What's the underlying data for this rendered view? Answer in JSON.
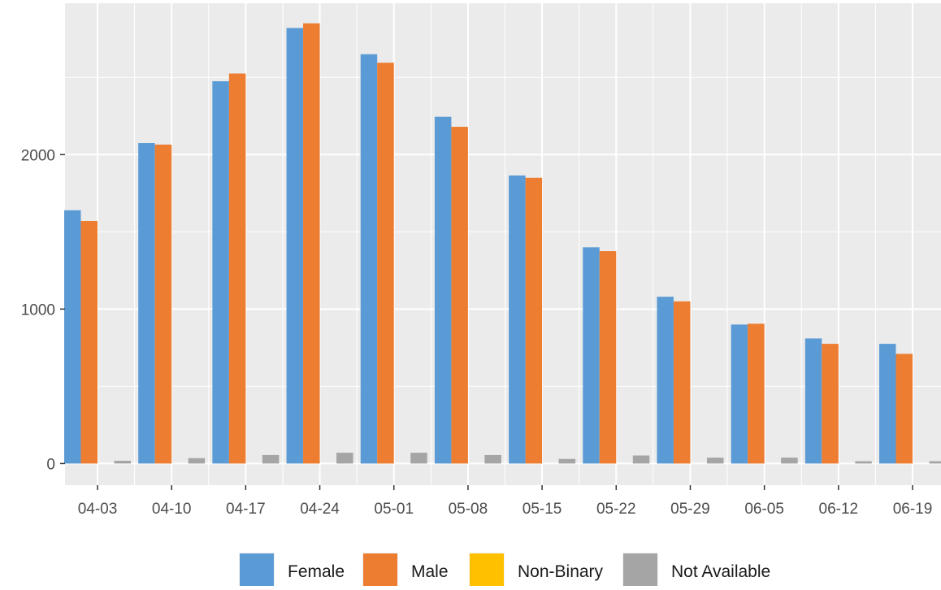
{
  "chart_data": {
    "type": "bar",
    "title": "",
    "xlabel": "",
    "ylabel": "",
    "categories": [
      "04-03",
      "04-10",
      "04-17",
      "04-24",
      "05-01",
      "05-08",
      "05-15",
      "05-22",
      "05-29",
      "06-05",
      "06-12",
      "06-19"
    ],
    "series": [
      {
        "name": "Female",
        "color": "#5b9bd5",
        "values": [
          1640,
          2075,
          2475,
          2820,
          2650,
          2245,
          1865,
          1400,
          1080,
          900,
          810,
          775
        ]
      },
      {
        "name": "Male",
        "color": "#ed7d31",
        "values": [
          1570,
          2065,
          2525,
          2850,
          2595,
          2180,
          1850,
          1375,
          1050,
          905,
          775,
          710
        ]
      },
      {
        "name": "Non-Binary",
        "color": "#ffc000",
        "values": [
          0,
          0,
          0,
          0,
          0,
          0,
          0,
          0,
          0,
          0,
          0,
          0
        ]
      },
      {
        "name": "Not Available",
        "color": "#a5a5a5",
        "values": [
          18,
          35,
          55,
          70,
          70,
          55,
          30,
          52,
          38,
          38,
          15,
          15
        ]
      }
    ],
    "y_ticks": [
      0,
      1000,
      2000
    ],
    "ylim": [
      -140,
      2980
    ],
    "grid": true,
    "legend_position": "bottom",
    "panel_background": "#ebebeb",
    "grid_color": "#ffffff"
  }
}
